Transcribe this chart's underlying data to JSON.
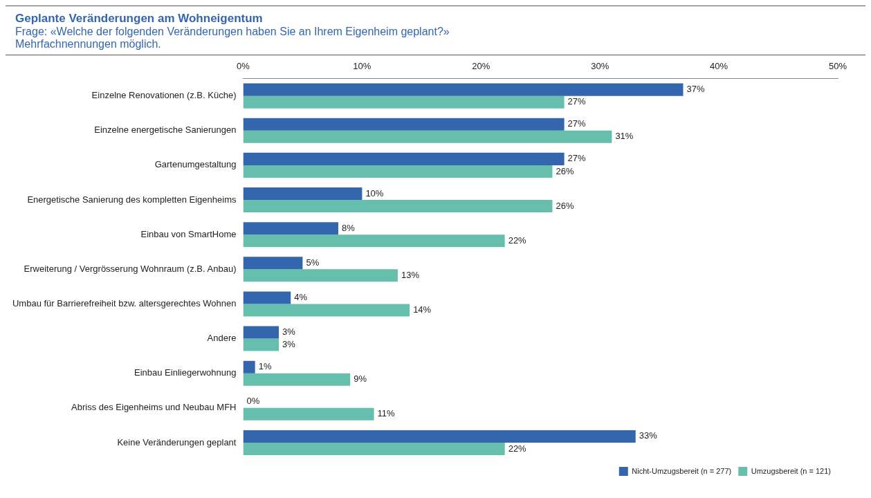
{
  "chart_data": {
    "type": "bar",
    "orientation": "horizontal",
    "title": "Geplante Veränderungen am Wohneigentum",
    "subtitle": "Frage: «Welche der folgenden Veränderungen haben Sie an Ihrem Eigenheim geplant?»\nMehrfachnennungen möglich.",
    "categories": [
      "Einzelne Renovationen (z.B. Küche)",
      "Einzelne energetische Sanierungen",
      "Gartenumgestaltung",
      "Energetische Sanierung des kompletten Eigenheims",
      "Einbau von SmartHome",
      "Erweiterung / Vergrösserung Wohnraum (z.B. Anbau)",
      "Umbau für Barrierefreiheit bzw. altersgerechtes Wohnen",
      "Andere",
      "Einbau Einliegerwohnung",
      "Abriss des Eigenheims und Neubau MFH",
      "Keine Veränderungen geplant"
    ],
    "series": [
      {
        "name": "Nicht-Umzugsbereit (n = 277)",
        "color": "#3466ad",
        "values": [
          37,
          27,
          27,
          10,
          8,
          5,
          4,
          3,
          1,
          0,
          33
        ],
        "value_labels": [
          "37%",
          "27%",
          "27%",
          "10%",
          "8%",
          "5%",
          "4%",
          "3%",
          "1%",
          "0%",
          "33%"
        ]
      },
      {
        "name": "Umzugsbereit (n = 121)",
        "color": "#66bfad",
        "values": [
          27,
          31,
          26,
          26,
          22,
          13,
          14,
          3,
          9,
          11,
          22
        ],
        "value_labels": [
          "27%",
          "31%",
          "26%",
          "26%",
          "22%",
          "13%",
          "14%",
          "3%",
          "9%",
          "11%",
          "22%"
        ]
      }
    ],
    "xlim": [
      0,
      50
    ],
    "xticks": [
      {
        "value": 0,
        "label": "0%"
      },
      {
        "value": 10,
        "label": "10%"
      },
      {
        "value": 20,
        "label": "20%"
      },
      {
        "value": 30,
        "label": "30%"
      },
      {
        "value": 40,
        "label": "40%"
      },
      {
        "value": 50,
        "label": "50%"
      }
    ],
    "grid": false,
    "legend": "bottom right"
  }
}
